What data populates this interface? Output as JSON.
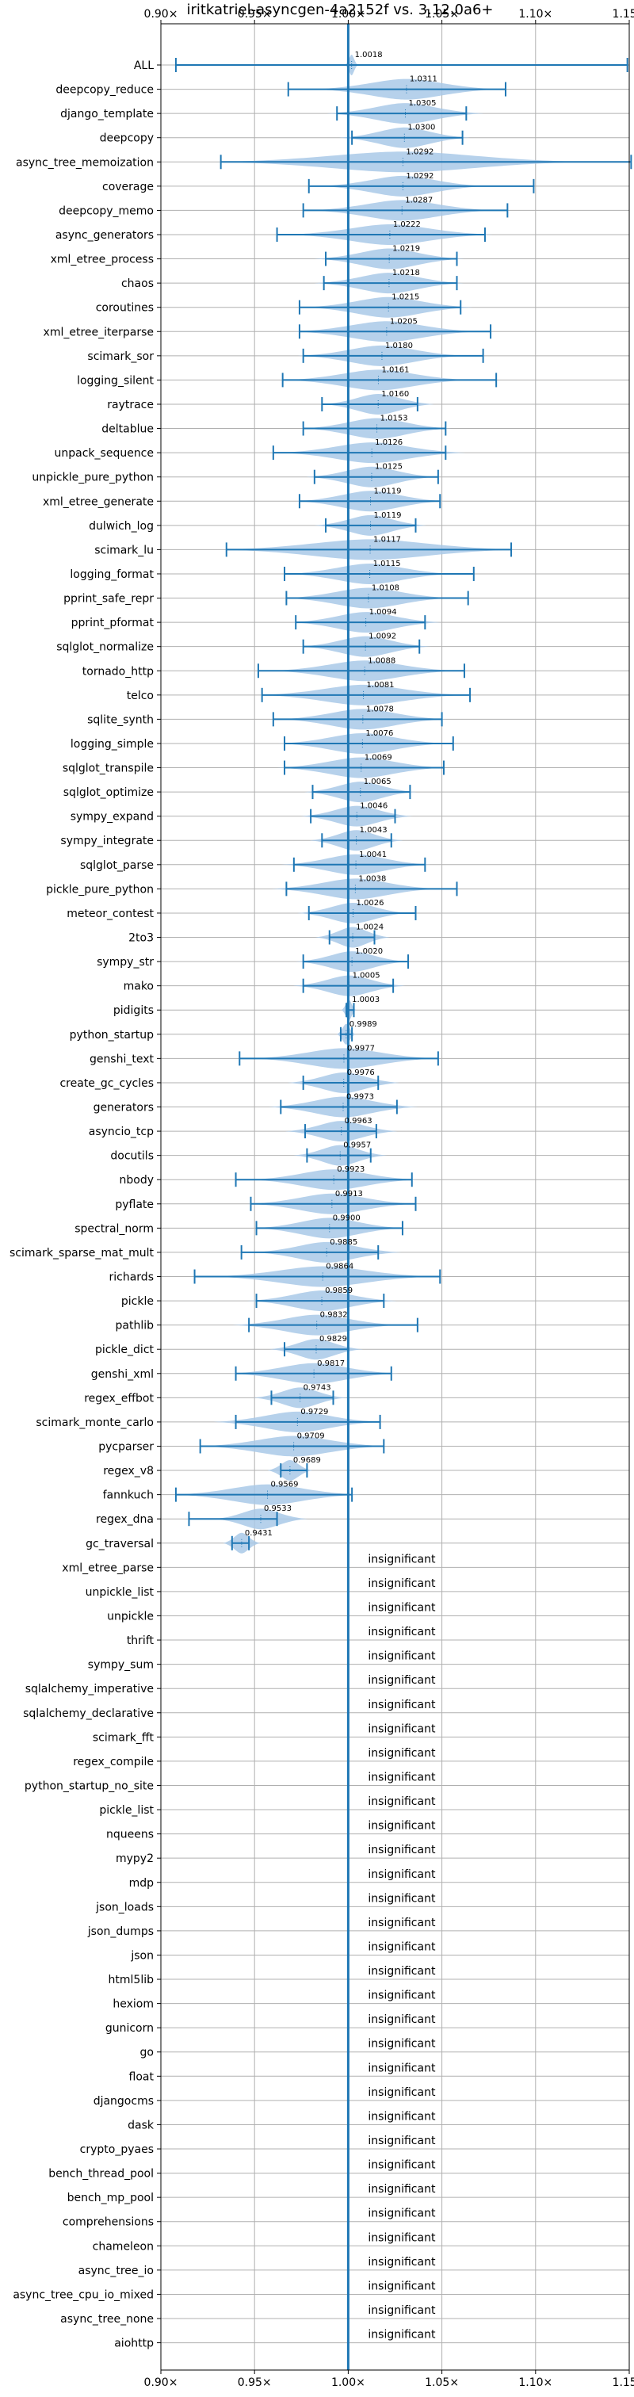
{
  "chart_data": {
    "type": "violin",
    "title": "iritkatriel-asyncgen-4a2152f vs. 3.12.0a6+",
    "xlim": [
      0.9,
      1.15
    ],
    "x_ticks": [
      0.9,
      0.95,
      1.0,
      1.05,
      1.1,
      1.15
    ],
    "x_tick_labels": [
      "0.90×",
      "0.95×",
      "1.00×",
      "1.05×",
      "1.10×",
      "1.15×"
    ],
    "reference_line": 1.0,
    "grid": true,
    "colors": {
      "violin": "#a9c9e7",
      "whisker": "#1f77b4",
      "reference": "#1f77b4",
      "grid": "#b0b0b0"
    },
    "insignificant_label": "insignificant",
    "benchmarks": [
      {
        "name": "ALL",
        "value": 1.0018,
        "label": "1.0018",
        "min": 0.908,
        "max": 1.149,
        "w": 0.0035,
        "kind": "all"
      },
      {
        "name": "deepcopy_reduce",
        "value": 1.0311,
        "label": "1.0311",
        "min": 0.968,
        "max": 1.084,
        "w": 0.05
      },
      {
        "name": "django_template",
        "value": 1.0305,
        "label": "1.0305",
        "min": 0.994,
        "max": 1.063,
        "w": 0.042
      },
      {
        "name": "deepcopy",
        "value": 1.03,
        "label": "1.0300",
        "min": 1.002,
        "max": 1.061,
        "w": 0.035
      },
      {
        "name": "async_tree_memoization",
        "value": 1.0292,
        "label": "1.0292",
        "min": 0.932,
        "max": 1.151,
        "w": 0.1
      },
      {
        "name": "coverage",
        "value": 1.0292,
        "label": "1.0292",
        "min": 0.979,
        "max": 1.099,
        "w": 0.045
      },
      {
        "name": "deepcopy_memo",
        "value": 1.0287,
        "label": "1.0287",
        "min": 0.976,
        "max": 1.085,
        "w": 0.05
      },
      {
        "name": "async_generators",
        "value": 1.0222,
        "label": "1.0222",
        "min": 0.962,
        "max": 1.073,
        "w": 0.055
      },
      {
        "name": "xml_etree_process",
        "value": 1.0219,
        "label": "1.0219",
        "min": 0.988,
        "max": 1.058,
        "w": 0.04
      },
      {
        "name": "chaos",
        "value": 1.0218,
        "label": "1.0218",
        "min": 0.987,
        "max": 1.058,
        "w": 0.04
      },
      {
        "name": "coroutines",
        "value": 1.0215,
        "label": "1.0215",
        "min": 0.974,
        "max": 1.06,
        "w": 0.045
      },
      {
        "name": "xml_etree_iterparse",
        "value": 1.0205,
        "label": "1.0205",
        "min": 0.974,
        "max": 1.076,
        "w": 0.05
      },
      {
        "name": "scimark_sor",
        "value": 1.018,
        "label": "1.0180",
        "min": 0.976,
        "max": 1.072,
        "w": 0.045
      },
      {
        "name": "logging_silent",
        "value": 1.0161,
        "label": "1.0161",
        "min": 0.965,
        "max": 1.079,
        "w": 0.05
      },
      {
        "name": "raytrace",
        "value": 1.016,
        "label": "1.0160",
        "min": 0.986,
        "max": 1.037,
        "w": 0.03
      },
      {
        "name": "deltablue",
        "value": 1.0153,
        "label": "1.0153",
        "min": 0.976,
        "max": 1.052,
        "w": 0.04
      },
      {
        "name": "unpack_sequence",
        "value": 1.0126,
        "label": "1.0126",
        "min": 0.96,
        "max": 1.052,
        "w": 0.05
      },
      {
        "name": "unpickle_pure_python",
        "value": 1.0125,
        "label": "1.0125",
        "min": 0.982,
        "max": 1.048,
        "w": 0.035
      },
      {
        "name": "xml_etree_generate",
        "value": 1.0119,
        "label": "1.0119",
        "min": 0.974,
        "max": 1.049,
        "w": 0.04
      },
      {
        "name": "dulwich_log",
        "value": 1.0119,
        "label": "1.0119",
        "min": 0.988,
        "max": 1.036,
        "w": 0.03
      },
      {
        "name": "scimark_lu",
        "value": 1.0117,
        "label": "1.0117",
        "min": 0.935,
        "max": 1.087,
        "w": 0.08
      },
      {
        "name": "logging_format",
        "value": 1.0115,
        "label": "1.0115",
        "min": 0.966,
        "max": 1.067,
        "w": 0.045
      },
      {
        "name": "pprint_safe_repr",
        "value": 1.0108,
        "label": "1.0108",
        "min": 0.967,
        "max": 1.064,
        "w": 0.045
      },
      {
        "name": "pprint_pformat",
        "value": 1.0094,
        "label": "1.0094",
        "min": 0.972,
        "max": 1.041,
        "w": 0.04
      },
      {
        "name": "sqlglot_normalize",
        "value": 1.0092,
        "label": "1.0092",
        "min": 0.976,
        "max": 1.038,
        "w": 0.035
      },
      {
        "name": "tornado_http",
        "value": 1.0088,
        "label": "1.0088",
        "min": 0.952,
        "max": 1.062,
        "w": 0.05
      },
      {
        "name": "telco",
        "value": 1.0081,
        "label": "1.0081",
        "min": 0.954,
        "max": 1.065,
        "w": 0.055
      },
      {
        "name": "sqlite_synth",
        "value": 1.0078,
        "label": "1.0078",
        "min": 0.96,
        "max": 1.05,
        "w": 0.045
      },
      {
        "name": "logging_simple",
        "value": 1.0076,
        "label": "1.0076",
        "min": 0.966,
        "max": 1.056,
        "w": 0.045
      },
      {
        "name": "sqlglot_transpile",
        "value": 1.0069,
        "label": "1.0069",
        "min": 0.966,
        "max": 1.051,
        "w": 0.045
      },
      {
        "name": "sqlglot_optimize",
        "value": 1.0065,
        "label": "1.0065",
        "min": 0.981,
        "max": 1.033,
        "w": 0.03
      },
      {
        "name": "sympy_expand",
        "value": 1.0046,
        "label": "1.0046",
        "min": 0.98,
        "max": 1.025,
        "w": 0.03
      },
      {
        "name": "sympy_integrate",
        "value": 1.0043,
        "label": "1.0043",
        "min": 0.986,
        "max": 1.023,
        "w": 0.025
      },
      {
        "name": "sqlglot_parse",
        "value": 1.0041,
        "label": "1.0041",
        "min": 0.971,
        "max": 1.041,
        "w": 0.04
      },
      {
        "name": "pickle_pure_python",
        "value": 1.0038,
        "label": "1.0038",
        "min": 0.967,
        "max": 1.058,
        "w": 0.045
      },
      {
        "name": "meteor_contest",
        "value": 1.0026,
        "label": "1.0026",
        "min": 0.979,
        "max": 1.036,
        "w": 0.03
      },
      {
        "name": "2to3",
        "value": 1.0024,
        "label": "1.0024",
        "min": 0.99,
        "max": 1.014,
        "w": 0.02
      },
      {
        "name": "sympy_str",
        "value": 1.002,
        "label": "1.0020",
        "min": 0.976,
        "max": 1.032,
        "w": 0.03
      },
      {
        "name": "mako",
        "value": 1.0005,
        "label": "1.0005",
        "min": 0.976,
        "max": 1.024,
        "w": 0.03
      },
      {
        "name": "pidigits",
        "value": 1.0003,
        "label": "1.0003",
        "min": 0.999,
        "max": 1.003,
        "w": 0.004
      },
      {
        "name": "python_startup",
        "value": 0.9989,
        "label": "0.9989",
        "min": 0.996,
        "max": 1.002,
        "w": 0.005
      },
      {
        "name": "genshi_text",
        "value": 0.9977,
        "label": "0.9977",
        "min": 0.942,
        "max": 1.048,
        "w": 0.05
      },
      {
        "name": "create_gc_cycles",
        "value": 0.9976,
        "label": "0.9976",
        "min": 0.976,
        "max": 1.016,
        "w": 0.03
      },
      {
        "name": "generators",
        "value": 0.9973,
        "label": "0.9973",
        "min": 0.964,
        "max": 1.026,
        "w": 0.04
      },
      {
        "name": "asyncio_tcp",
        "value": 0.9963,
        "label": "0.9963",
        "min": 0.977,
        "max": 1.015,
        "w": 0.03
      },
      {
        "name": "docutils",
        "value": 0.9957,
        "label": "0.9957",
        "min": 0.978,
        "max": 1.012,
        "w": 0.025
      },
      {
        "name": "nbody",
        "value": 0.9923,
        "label": "0.9923",
        "min": 0.94,
        "max": 1.034,
        "w": 0.045
      },
      {
        "name": "pyflate",
        "value": 0.9913,
        "label": "0.9913",
        "min": 0.948,
        "max": 1.036,
        "w": 0.045
      },
      {
        "name": "spectral_norm",
        "value": 0.99,
        "label": "0.9900",
        "min": 0.951,
        "max": 1.029,
        "w": 0.04
      },
      {
        "name": "scimark_sparse_mat_mult",
        "value": 0.9885,
        "label": "0.9885",
        "min": 0.943,
        "max": 1.016,
        "w": 0.04
      },
      {
        "name": "richards",
        "value": 0.9864,
        "label": "0.9864",
        "min": 0.918,
        "max": 1.049,
        "w": 0.06
      },
      {
        "name": "pickle",
        "value": 0.9859,
        "label": "0.9859",
        "min": 0.951,
        "max": 1.019,
        "w": 0.04
      },
      {
        "name": "pathlib",
        "value": 0.9832,
        "label": "0.9832",
        "min": 0.947,
        "max": 1.037,
        "w": 0.045
      },
      {
        "name": "pickle_dict",
        "value": 0.9829,
        "label": "0.9829",
        "min": 0.966,
        "max": 1.0,
        "w": 0.025
      },
      {
        "name": "genshi_xml",
        "value": 0.9817,
        "label": "0.9817",
        "min": 0.94,
        "max": 1.023,
        "w": 0.045
      },
      {
        "name": "regex_effbot",
        "value": 0.9743,
        "label": "0.9743",
        "min": 0.959,
        "max": 0.992,
        "w": 0.025
      },
      {
        "name": "scimark_monte_carlo",
        "value": 0.9729,
        "label": "0.9729",
        "min": 0.94,
        "max": 1.017,
        "w": 0.045
      },
      {
        "name": "pycparser",
        "value": 0.9709,
        "label": "0.9709",
        "min": 0.921,
        "max": 1.019,
        "w": 0.05
      },
      {
        "name": "regex_v8",
        "value": 0.9689,
        "label": "0.9689",
        "min": 0.964,
        "max": 0.978,
        "w": 0.012
      },
      {
        "name": "fannkuch",
        "value": 0.9569,
        "label": "0.9569",
        "min": 0.908,
        "max": 1.002,
        "w": 0.05
      },
      {
        "name": "regex_dna",
        "value": 0.9533,
        "label": "0.9533",
        "min": 0.915,
        "max": 0.962,
        "w": 0.025
      },
      {
        "name": "gc_traversal",
        "value": 0.9431,
        "label": "0.9431",
        "min": 0.938,
        "max": 0.947,
        "w": 0.01
      },
      {
        "name": "xml_etree_parse",
        "insignificant": true
      },
      {
        "name": "unpickle_list",
        "insignificant": true
      },
      {
        "name": "unpickle",
        "insignificant": true
      },
      {
        "name": "thrift",
        "insignificant": true
      },
      {
        "name": "sympy_sum",
        "insignificant": true
      },
      {
        "name": "sqlalchemy_imperative",
        "insignificant": true
      },
      {
        "name": "sqlalchemy_declarative",
        "insignificant": true
      },
      {
        "name": "scimark_fft",
        "insignificant": true
      },
      {
        "name": "regex_compile",
        "insignificant": true
      },
      {
        "name": "python_startup_no_site",
        "insignificant": true
      },
      {
        "name": "pickle_list",
        "insignificant": true
      },
      {
        "name": "nqueens",
        "insignificant": true
      },
      {
        "name": "mypy2",
        "insignificant": true
      },
      {
        "name": "mdp",
        "insignificant": true
      },
      {
        "name": "json_loads",
        "insignificant": true
      },
      {
        "name": "json_dumps",
        "insignificant": true
      },
      {
        "name": "json",
        "insignificant": true
      },
      {
        "name": "html5lib",
        "insignificant": true
      },
      {
        "name": "hexiom",
        "insignificant": true
      },
      {
        "name": "gunicorn",
        "insignificant": true
      },
      {
        "name": "go",
        "insignificant": true
      },
      {
        "name": "float",
        "insignificant": true
      },
      {
        "name": "djangocms",
        "insignificant": true
      },
      {
        "name": "dask",
        "insignificant": true
      },
      {
        "name": "crypto_pyaes",
        "insignificant": true
      },
      {
        "name": "bench_thread_pool",
        "insignificant": true
      },
      {
        "name": "bench_mp_pool",
        "insignificant": true
      },
      {
        "name": "comprehensions",
        "insignificant": true
      },
      {
        "name": "chameleon",
        "insignificant": true
      },
      {
        "name": "async_tree_io",
        "insignificant": true
      },
      {
        "name": "async_tree_cpu_io_mixed",
        "insignificant": true
      },
      {
        "name": "async_tree_none",
        "insignificant": true
      },
      {
        "name": "aiohttp",
        "insignificant": true
      }
    ]
  }
}
